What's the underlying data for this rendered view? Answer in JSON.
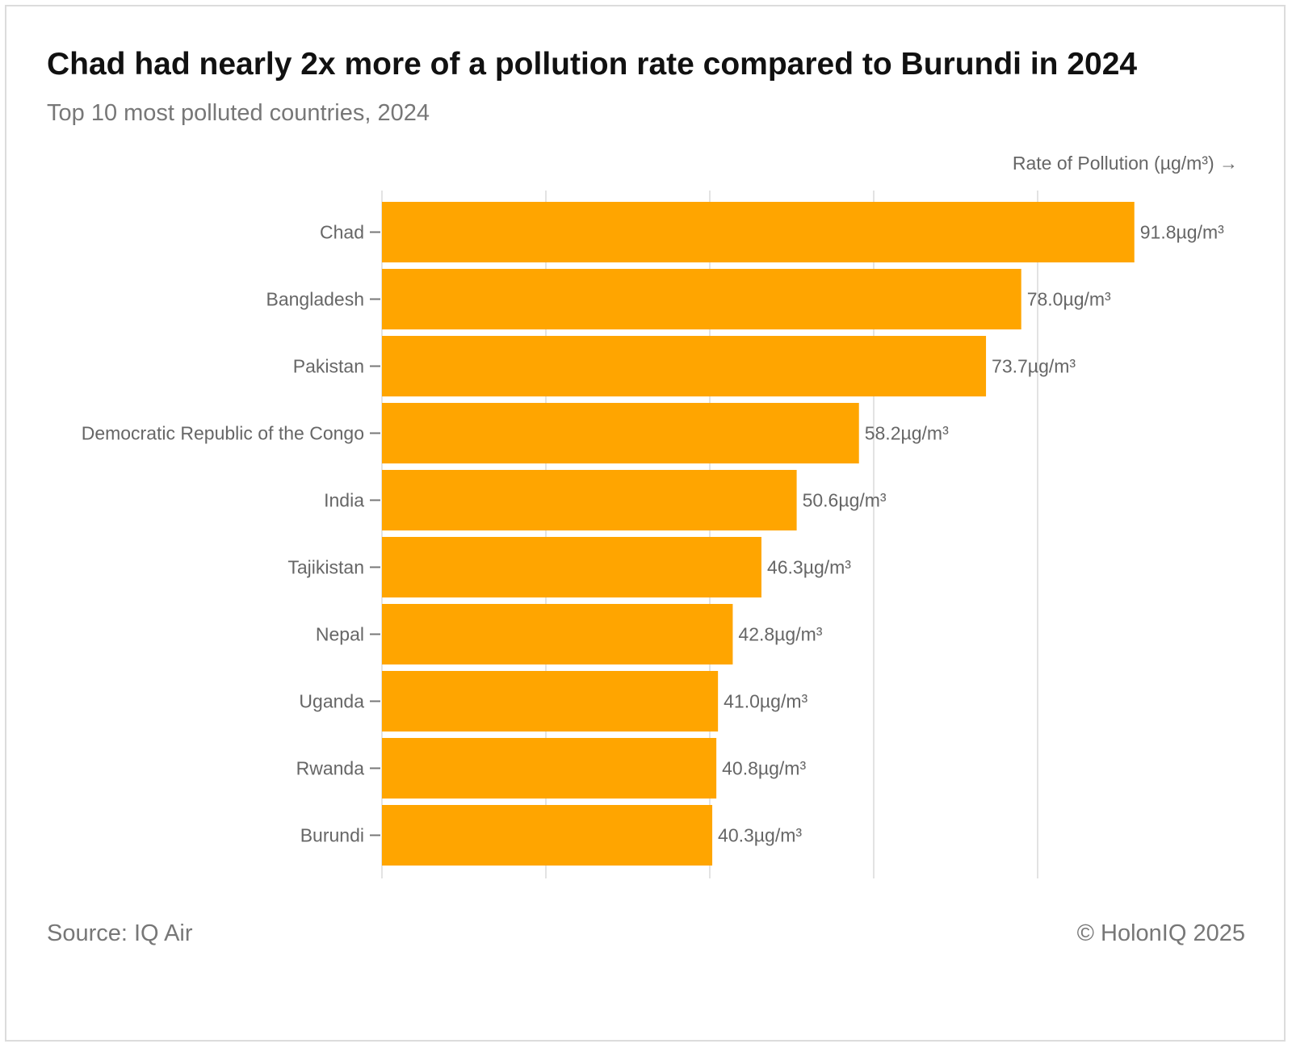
{
  "header": {
    "title": "Chad had nearly 2x more of a pollution rate compared to Burundi in 2024",
    "subtitle": "Top 10 most polluted countries, 2024"
  },
  "footer": {
    "source": "Source: IQ Air",
    "copyright": "© HolonIQ 2025"
  },
  "chart_data": {
    "type": "bar",
    "orientation": "horizontal",
    "title": "Chad had nearly 2x more of a pollution rate compared to Burundi in 2024",
    "subtitle": "Top 10 most polluted countries, 2024",
    "xlabel": "Rate of Pollution (µg/m³) →",
    "ylabel": "",
    "xlim": [
      0,
      100
    ],
    "grid": true,
    "categories": [
      "Chad",
      "Bangladesh",
      "Pakistan",
      "Democratic Republic of the Congo",
      "India",
      "Tajikistan",
      "Nepal",
      "Uganda",
      "Rwanda",
      "Burundi"
    ],
    "values": [
      91.8,
      78.0,
      73.7,
      58.2,
      50.6,
      46.3,
      42.8,
      41.0,
      40.8,
      40.3
    ],
    "value_labels": [
      "91.8µg/m³",
      "78.0µg/m³",
      "73.7µg/m³",
      "58.2µg/m³",
      "50.6µg/m³",
      "46.3µg/m³",
      "42.8µg/m³",
      "41.0µg/m³",
      "40.8µg/m³",
      "40.3µg/m³"
    ],
    "bar_color": "#FFA500",
    "label_color": "#666666",
    "grid_color": "#e3e3e3"
  }
}
